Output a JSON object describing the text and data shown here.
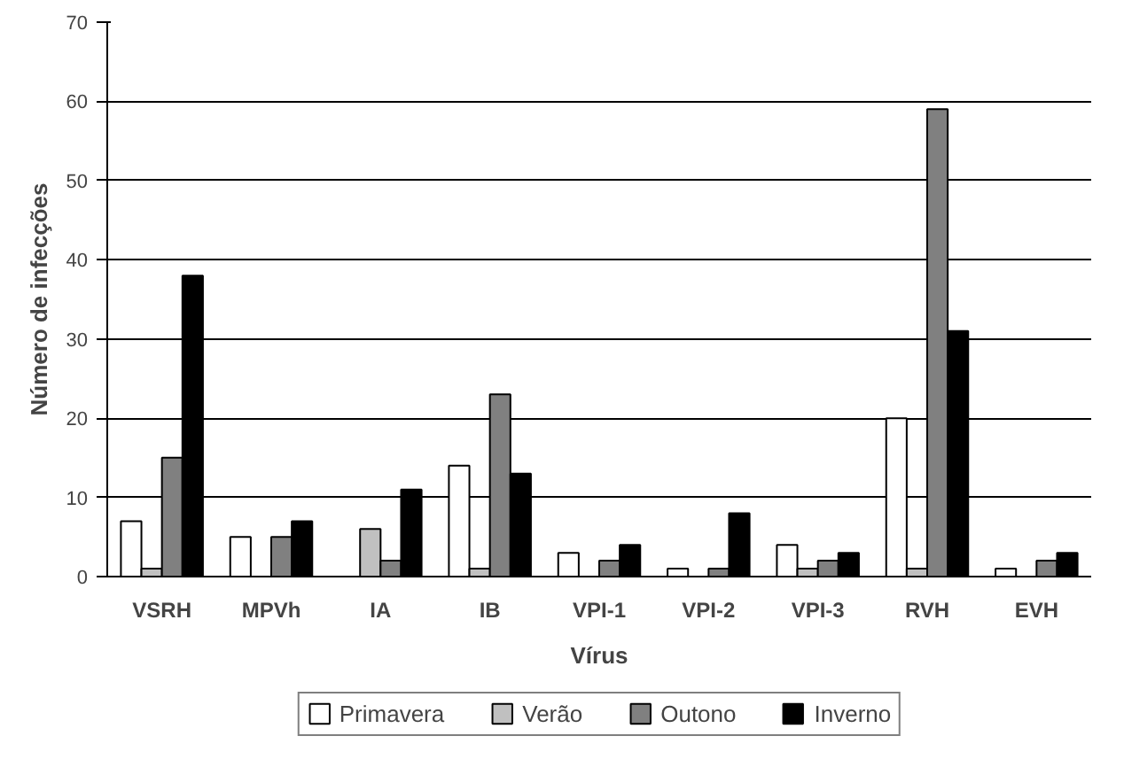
{
  "chart_data": {
    "type": "bar",
    "xlabel": "Vírus",
    "ylabel": "Número de infecções",
    "categories": [
      "VSRH",
      "MPVh",
      "IA",
      "IB",
      "VPI-1",
      "VPI-2",
      "VPI-3",
      "RVH",
      "EVH"
    ],
    "series": [
      {
        "name": "Primavera",
        "color": "#ffffff",
        "values": [
          7,
          5,
          0,
          14,
          3,
          1,
          4,
          20,
          1
        ]
      },
      {
        "name": "Verão",
        "color": "#c0c0c0",
        "values": [
          1,
          0,
          6,
          1,
          0,
          0,
          1,
          1,
          0
        ]
      },
      {
        "name": "Outono",
        "color": "#808080",
        "values": [
          15,
          5,
          2,
          23,
          2,
          1,
          2,
          59,
          2
        ]
      },
      {
        "name": "Inverno",
        "color": "#000000",
        "values": [
          38,
          7,
          11,
          13,
          4,
          8,
          3,
          31,
          3
        ]
      }
    ],
    "ylim": [
      0,
      70
    ],
    "yticks": [
      0,
      10,
      20,
      30,
      40,
      50,
      60,
      70
    ],
    "grid": "y",
    "legend": "bottom"
  }
}
